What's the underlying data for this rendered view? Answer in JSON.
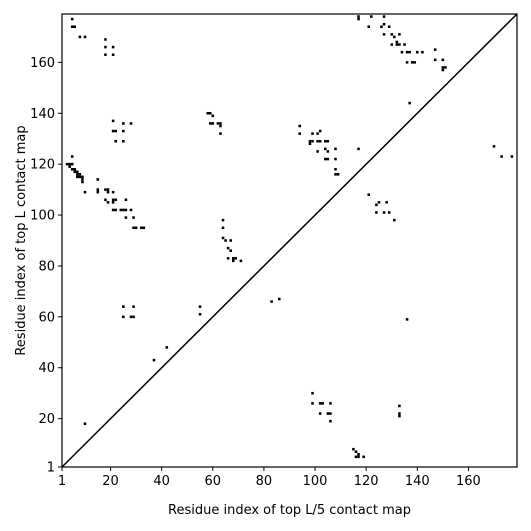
{
  "chart_data": {
    "type": "scatter",
    "title": "",
    "xlabel": "Residue index of top L/5 contact map",
    "ylabel": "Residue index of top L contact map",
    "xlim": [
      1,
      179
    ],
    "ylim": [
      1,
      179
    ],
    "x_ticks": [
      1,
      20,
      40,
      60,
      80,
      100,
      120,
      140,
      160
    ],
    "y_ticks": [
      1,
      20,
      40,
      60,
      80,
      100,
      120,
      140,
      160
    ],
    "grid": false,
    "legend": "none",
    "diagonal": true,
    "marker_color": "#000000",
    "series": [
      {
        "name": "",
        "points": [
          [
            5,
            177
          ],
          [
            5,
            174
          ],
          [
            6,
            174
          ],
          [
            8,
            170
          ],
          [
            10,
            170
          ],
          [
            18,
            169
          ],
          [
            18,
            166
          ],
          [
            21,
            166
          ],
          [
            18,
            163
          ],
          [
            21,
            163
          ],
          [
            3,
            120
          ],
          [
            4,
            120
          ],
          [
            5,
            120
          ],
          [
            4,
            119
          ],
          [
            5,
            118
          ],
          [
            6,
            118
          ],
          [
            6,
            117
          ],
          [
            7,
            117
          ],
          [
            7,
            116
          ],
          [
            8,
            116
          ],
          [
            7,
            115
          ],
          [
            8,
            115
          ],
          [
            9,
            115
          ],
          [
            9,
            114
          ],
          [
            9,
            113
          ],
          [
            5,
            123
          ],
          [
            10,
            109
          ],
          [
            15,
            114
          ],
          [
            15,
            110
          ],
          [
            15,
            109
          ],
          [
            18,
            110
          ],
          [
            19,
            110
          ],
          [
            19,
            109
          ],
          [
            21,
            109
          ],
          [
            18,
            106
          ],
          [
            19,
            105
          ],
          [
            21,
            106
          ],
          [
            22,
            106
          ],
          [
            21,
            105
          ],
          [
            21,
            102
          ],
          [
            22,
            102
          ],
          [
            24,
            102
          ],
          [
            25,
            102
          ],
          [
            26,
            102
          ],
          [
            26,
            106
          ],
          [
            28,
            102
          ],
          [
            26,
            99
          ],
          [
            29,
            99
          ],
          [
            29,
            95
          ],
          [
            30,
            95
          ],
          [
            32,
            95
          ],
          [
            33,
            95
          ],
          [
            21,
            137
          ],
          [
            21,
            133
          ],
          [
            22,
            133
          ],
          [
            25,
            133
          ],
          [
            25,
            136
          ],
          [
            28,
            136
          ],
          [
            22,
            129
          ],
          [
            25,
            129
          ],
          [
            58,
            140
          ],
          [
            59,
            140
          ],
          [
            60,
            139
          ],
          [
            59,
            136
          ],
          [
            60,
            136
          ],
          [
            62,
            136
          ],
          [
            63,
            136
          ],
          [
            63,
            135
          ],
          [
            63,
            132
          ],
          [
            64,
            98
          ],
          [
            64,
            95
          ],
          [
            64,
            91
          ],
          [
            65,
            90
          ],
          [
            67,
            90
          ],
          [
            66,
            87
          ],
          [
            67,
            86
          ],
          [
            66,
            83
          ],
          [
            68,
            83
          ],
          [
            68,
            82
          ],
          [
            69,
            83
          ],
          [
            71,
            82
          ],
          [
            25,
            64
          ],
          [
            29,
            64
          ],
          [
            25,
            60
          ],
          [
            28,
            60
          ],
          [
            29,
            60
          ],
          [
            55,
            64
          ],
          [
            55,
            61
          ],
          [
            37,
            43
          ],
          [
            42,
            48
          ],
          [
            83,
            66
          ],
          [
            86,
            67
          ],
          [
            94,
            135
          ],
          [
            94,
            132
          ],
          [
            99,
            132
          ],
          [
            101,
            132
          ],
          [
            102,
            133
          ],
          [
            98,
            129
          ],
          [
            99,
            129
          ],
          [
            98,
            128
          ],
          [
            101,
            129
          ],
          [
            102,
            129
          ],
          [
            104,
            129
          ],
          [
            105,
            129
          ],
          [
            104,
            126
          ],
          [
            105,
            125
          ],
          [
            108,
            126
          ],
          [
            104,
            122
          ],
          [
            105,
            122
          ],
          [
            108,
            122
          ],
          [
            108,
            118
          ],
          [
            108,
            116
          ],
          [
            109,
            116
          ],
          [
            101,
            125
          ],
          [
            117,
            126
          ],
          [
            117,
            178
          ],
          [
            117,
            177
          ],
          [
            122,
            178
          ],
          [
            127,
            178
          ],
          [
            121,
            174
          ],
          [
            126,
            174
          ],
          [
            127,
            175
          ],
          [
            129,
            174
          ],
          [
            127,
            171
          ],
          [
            130,
            171
          ],
          [
            131,
            170
          ],
          [
            133,
            171
          ],
          [
            130,
            167
          ],
          [
            132,
            167
          ],
          [
            133,
            167
          ],
          [
            132,
            168
          ],
          [
            135,
            167
          ],
          [
            134,
            164
          ],
          [
            136,
            164
          ],
          [
            137,
            164
          ],
          [
            138,
            160
          ],
          [
            139,
            160
          ],
          [
            140,
            164
          ],
          [
            142,
            164
          ],
          [
            136,
            160
          ],
          [
            147,
            165
          ],
          [
            147,
            161
          ],
          [
            150,
            161
          ],
          [
            150,
            158
          ],
          [
            151,
            158
          ],
          [
            150,
            157
          ],
          [
            137,
            144
          ],
          [
            170,
            127
          ],
          [
            173,
            123
          ],
          [
            177,
            123
          ],
          [
            121,
            108
          ],
          [
            124,
            104
          ],
          [
            125,
            105
          ],
          [
            128,
            105
          ],
          [
            124,
            101
          ],
          [
            127,
            101
          ],
          [
            129,
            101
          ],
          [
            131,
            98
          ],
          [
            133,
            25
          ],
          [
            133,
            22
          ],
          [
            133,
            21
          ],
          [
            136,
            59
          ],
          [
            99,
            30
          ],
          [
            99,
            26
          ],
          [
            102,
            26
          ],
          [
            103,
            26
          ],
          [
            102,
            22
          ],
          [
            105,
            22
          ],
          [
            106,
            22
          ],
          [
            106,
            26
          ],
          [
            106,
            19
          ],
          [
            115,
            8
          ],
          [
            116,
            7
          ],
          [
            117,
            6
          ],
          [
            116,
            5
          ],
          [
            117,
            5
          ],
          [
            119,
            5
          ],
          [
            10,
            18
          ]
        ]
      }
    ]
  }
}
